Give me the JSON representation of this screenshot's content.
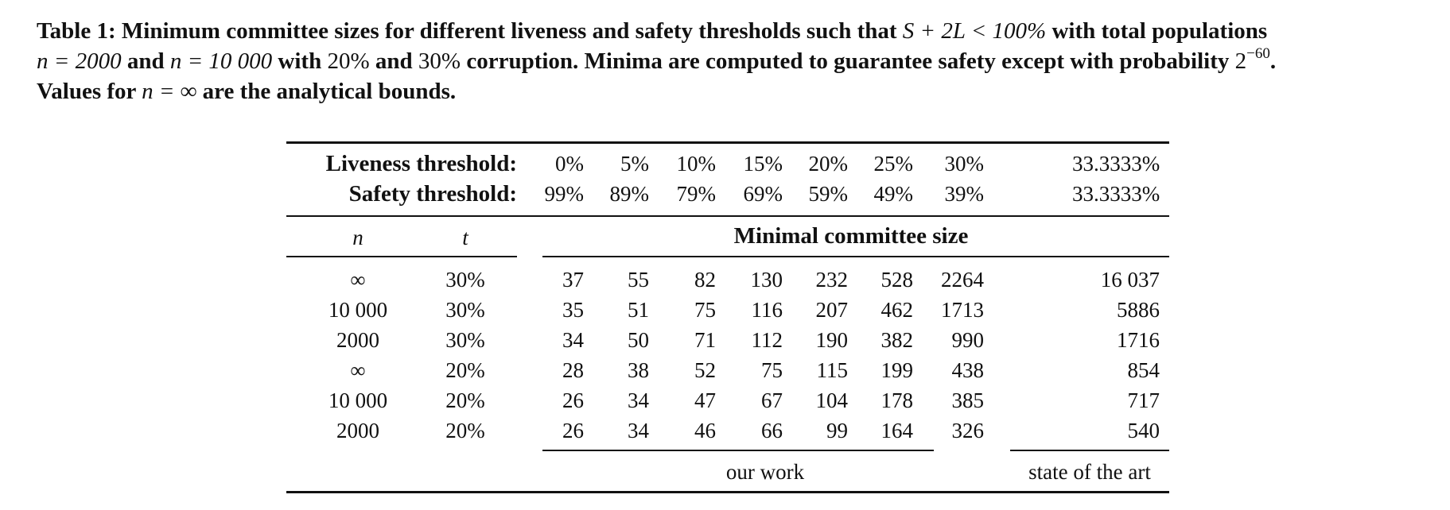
{
  "caption": {
    "p1": "Table 1: Minimum committee sizes for different liveness and safety thresholds such that",
    "m1": "S + 2L < 100%",
    "p2": "with total populations",
    "m2": "n = 2000",
    "p3": "and",
    "m3": "n = 10 000",
    "p4": "with",
    "m4": "20%",
    "p5": "and",
    "m5": "30%",
    "p6": "corruption. Minima are computed to guarantee safety except with probability",
    "m6": "2",
    "m6sup": "−60",
    "p7": ".",
    "p8": "Values for",
    "m7": "n = ∞",
    "p9": "are the analytical bounds."
  },
  "table": {
    "liveness_label": "Liveness threshold:",
    "safety_label": "Safety threshold:",
    "liveness": [
      "0%",
      "5%",
      "10%",
      "15%",
      "20%",
      "25%",
      "30%",
      "33.3333%"
    ],
    "safety": [
      "99%",
      "89%",
      "79%",
      "69%",
      "59%",
      "49%",
      "39%",
      "33.3333%"
    ],
    "col_n": "n",
    "col_t": "t",
    "group_header": "Minimal committee size",
    "rows": [
      {
        "n": "∞",
        "t": "30%",
        "values": [
          "37",
          "55",
          "82",
          "130",
          "232",
          "528",
          "2264",
          "16 037"
        ]
      },
      {
        "n": "10 000",
        "t": "30%",
        "values": [
          "35",
          "51",
          "75",
          "116",
          "207",
          "462",
          "1713",
          "5886"
        ]
      },
      {
        "n": "2000",
        "t": "30%",
        "values": [
          "34",
          "50",
          "71",
          "112",
          "190",
          "382",
          "990",
          "1716"
        ]
      },
      {
        "n": "∞",
        "t": "20%",
        "values": [
          "28",
          "38",
          "52",
          "75",
          "115",
          "199",
          "438",
          "854"
        ]
      },
      {
        "n": "10 000",
        "t": "20%",
        "values": [
          "26",
          "34",
          "47",
          "67",
          "104",
          "178",
          "385",
          "717"
        ]
      },
      {
        "n": "2000",
        "t": "20%",
        "values": [
          "26",
          "34",
          "46",
          "66",
          "99",
          "164",
          "326",
          "540"
        ]
      }
    ],
    "footer_ours": "our work",
    "footer_sota": "state of the art"
  }
}
